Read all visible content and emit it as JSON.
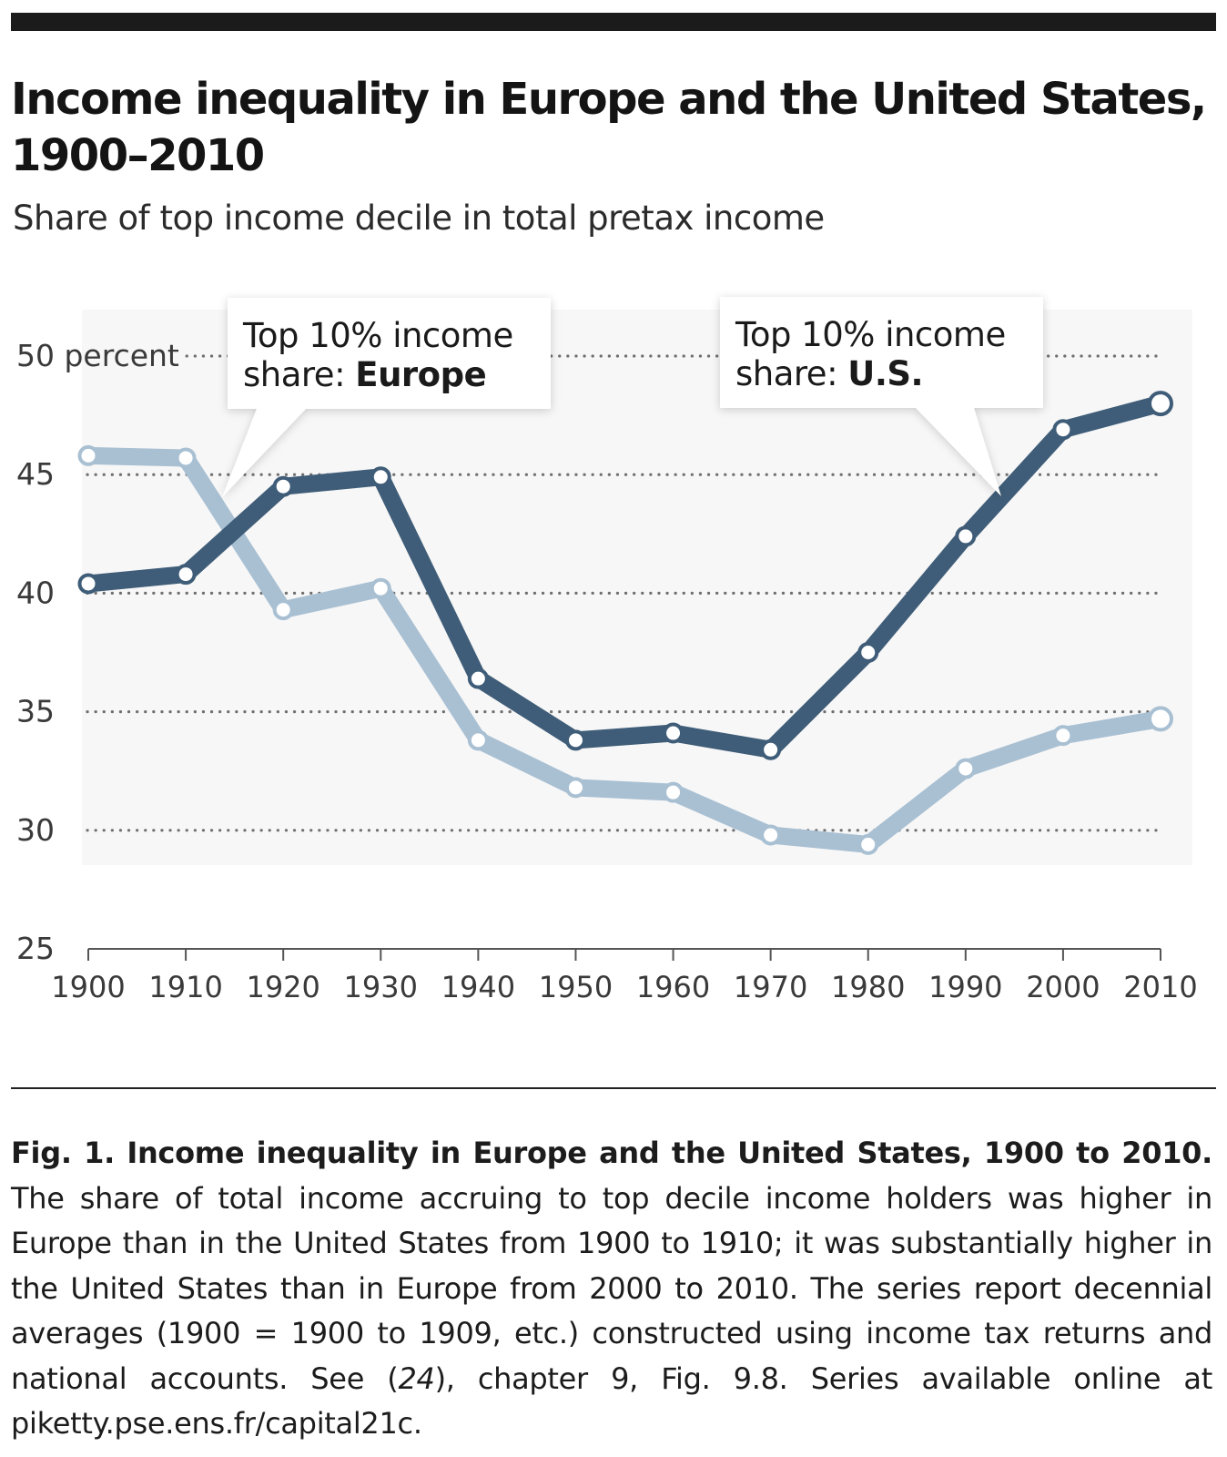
{
  "figure": {
    "title": "Income inequality in Europe and the United States, 1900–2010",
    "subtitle": "Share of top income decile in total pretax income"
  },
  "chart_data": {
    "type": "line",
    "title": "Income inequality in Europe and the United States, 1900–2010",
    "subtitle": "Share of top income decile in total pretax income",
    "x": [
      1900,
      1910,
      1920,
      1930,
      1940,
      1950,
      1960,
      1970,
      1980,
      1990,
      2000,
      2010
    ],
    "xlim": [
      1900,
      2010
    ],
    "ylim": [
      25,
      50
    ],
    "x_ticks": [
      "1900",
      "1910",
      "1920",
      "1930",
      "1940",
      "1950",
      "1960",
      "1970",
      "1980",
      "1990",
      "2000",
      "2010"
    ],
    "y_ticks": [
      {
        "value": 50,
        "label": "50 percent"
      },
      {
        "value": 45,
        "label": "45"
      },
      {
        "value": 40,
        "label": "40"
      },
      {
        "value": 35,
        "label": "35"
      },
      {
        "value": 30,
        "label": "30"
      },
      {
        "value": 25,
        "label": "25"
      }
    ],
    "grid": "horizontal dotted",
    "series": [
      {
        "name": "Top 10% income share: Europe",
        "label_prefix": "Top 10% income",
        "label_mid": "share: ",
        "label_bold": "Europe",
        "color": "#a9c0d3",
        "values": [
          45.8,
          45.7,
          39.3,
          40.2,
          33.8,
          31.8,
          31.6,
          29.8,
          29.4,
          32.6,
          34.0,
          34.7
        ]
      },
      {
        "name": "Top 10% income share: U.S.",
        "label_prefix": "Top 10% income",
        "label_mid": "share: ",
        "label_bold": "U.S.",
        "color": "#3f5d78",
        "values": [
          40.4,
          40.8,
          44.5,
          44.9,
          36.4,
          33.8,
          34.1,
          33.4,
          37.5,
          42.4,
          46.9,
          48.0
        ]
      }
    ]
  },
  "caption": {
    "lead": "Fig. 1. Income inequality in Europe and the United States, 1900 to 2010.",
    "body_1": "The share of total income accruing to top decile income holders was higher in Europe than in the United States from 1900 to 1910; it was substantially higher in the United States than in Europe from 2000 to 2010. The series report decennial averages (1900 = 1900 to 1909, etc.) constructed using income tax returns and national accounts. See (",
    "ref": "24",
    "body_2": "), chapter 9, Fig. 9.8. Series available online at piketty.pse.ens.fr/capital21c."
  }
}
